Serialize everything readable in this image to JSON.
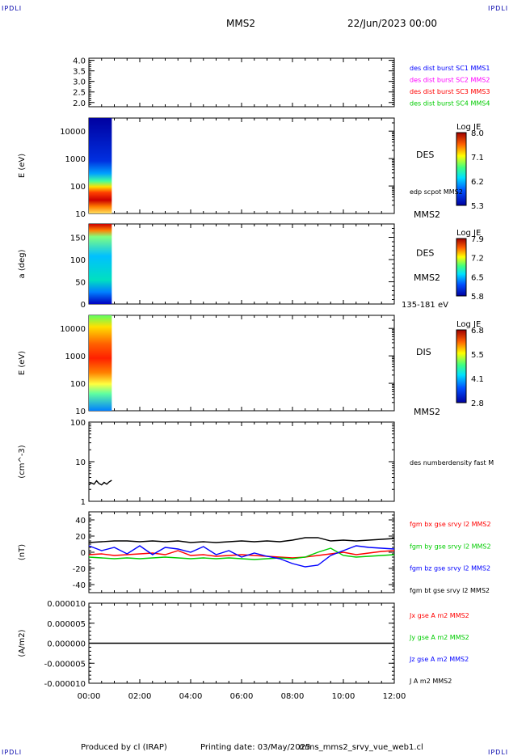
{
  "header": {
    "title": "MMS2",
    "date": "22/Jun/2023 00:00",
    "corner_mark": "IPDLI"
  },
  "footer": {
    "produced": "Produced by cl (IRAP)",
    "printing": "Printing date: 03/May/2025",
    "file": "mms_mms2_srvy_vue_web1.cl"
  },
  "x_axis": {
    "ticks": [
      "00:00",
      "02:00",
      "04:00",
      "06:00",
      "08:00",
      "10:00",
      "12:00"
    ],
    "range_hours": [
      0,
      12
    ]
  },
  "colors": {
    "blue": "#0000ff",
    "magenta": "#ff00ff",
    "red": "#ff0000",
    "green": "#00cc00",
    "black": "#000000"
  },
  "chart_data": [
    {
      "type": "line",
      "title": "",
      "ylabel": "",
      "ylim": [
        1.8,
        4.1
      ],
      "yticks": [
        "4.0",
        "3.5",
        "3.0",
        "2.5",
        "2.0"
      ],
      "series": [],
      "legend": [
        {
          "label": "des dist burst SC1 MMS1",
          "color": "#0000ff"
        },
        {
          "label": "des dist burst SC2 MMS2",
          "color": "#ff00ff"
        },
        {
          "label": "des dist burst SC3 MMS3",
          "color": "#ff0000"
        },
        {
          "label": "des dist burst SC4 MMS4",
          "color": "#00cc00"
        }
      ]
    },
    {
      "type": "heatmap",
      "ylabel": "E (eV)",
      "yscale": "log",
      "ylim": [
        10,
        30000
      ],
      "yticks": [
        "10000",
        "1000",
        "100",
        "10"
      ],
      "x_range_hours": [
        0,
        0.9
      ],
      "side_labels": [
        "DES",
        "edp scpot MMS2",
        "MMS2"
      ],
      "colorbar": {
        "title": "Log JE",
        "ticks": [
          "8.0",
          "7.1",
          "6.2",
          "5.3"
        ]
      }
    },
    {
      "type": "heatmap",
      "ylabel": "a (deg)",
      "ylim": [
        0,
        180
      ],
      "yticks": [
        "150",
        "100",
        "50",
        "0"
      ],
      "x_range_hours": [
        0,
        0.9
      ],
      "side_labels": [
        "DES",
        "MMS2",
        "135-181 eV"
      ],
      "colorbar": {
        "title": "Log JE",
        "ticks": [
          "7.9",
          "7.2",
          "6.5",
          "5.8"
        ]
      }
    },
    {
      "type": "heatmap",
      "ylabel": "E (eV)",
      "yscale": "log",
      "ylim": [
        10,
        30000
      ],
      "yticks": [
        "10000",
        "1000",
        "100",
        "10"
      ],
      "x_range_hours": [
        0,
        0.9
      ],
      "side_labels": [
        "DIS",
        "MMS2"
      ],
      "colorbar": {
        "title": "Log JE",
        "ticks": [
          "6.8",
          "5.5",
          "4.1",
          "2.8"
        ]
      }
    },
    {
      "type": "line",
      "ylabel": "(cm^-3)",
      "yscale": "log",
      "ylim": [
        1,
        100
      ],
      "yticks": [
        "100",
        "10",
        "1"
      ],
      "legend": [
        {
          "label": "des numberdensity fast M",
          "color": "#000000"
        }
      ],
      "series": [
        {
          "name": "des numberdensity fast M",
          "x_hours": [
            0.0,
            0.1,
            0.2,
            0.3,
            0.4,
            0.5,
            0.6,
            0.7,
            0.8,
            0.9
          ],
          "values": [
            2.6,
            2.9,
            2.7,
            3.3,
            2.8,
            2.6,
            3.0,
            2.7,
            3.1,
            3.4
          ]
        }
      ]
    },
    {
      "type": "line",
      "ylabel": "(nT)",
      "ylim": [
        -50,
        50
      ],
      "yticks": [
        "40",
        "20",
        "0",
        "-20",
        "-40"
      ],
      "legend": [
        {
          "label": "fgm bx gse srvy l2 MMS2",
          "color": "#ff0000"
        },
        {
          "label": "fgm by gse srvy l2 MMS2",
          "color": "#00cc00"
        },
        {
          "label": "fgm bz gse srvy l2 MMS2",
          "color": "#0000ff"
        },
        {
          "label": "fgm bt gse srvy l2 MMS2",
          "color": "#000000"
        }
      ],
      "series": [
        {
          "name": "fgm bt gse srvy l2 MMS2",
          "color": "#000000",
          "x_hours": [
            0,
            0.5,
            1,
            1.5,
            2,
            2.5,
            3,
            3.5,
            4,
            4.5,
            5,
            5.5,
            6,
            6.5,
            7,
            7.5,
            8,
            8.5,
            9,
            9.5,
            10,
            10.5,
            11,
            11.5,
            12
          ],
          "values": [
            12,
            13,
            14,
            14,
            13,
            14,
            13,
            14,
            12,
            13,
            12,
            13,
            14,
            13,
            14,
            13,
            15,
            18,
            18,
            14,
            15,
            14,
            15,
            16,
            17
          ]
        },
        {
          "name": "fgm bx gse srvy l2 MMS2",
          "color": "#ff0000",
          "x_hours": [
            0,
            0.5,
            1,
            1.5,
            2,
            2.5,
            3,
            3.5,
            4,
            4.5,
            5,
            5.5,
            6,
            6.5,
            7,
            7.5,
            8,
            8.5,
            9,
            9.5,
            10,
            10.5,
            11,
            11.5,
            12
          ],
          "values": [
            -3,
            -2,
            -4,
            -3,
            -2,
            -1,
            -3,
            2,
            -4,
            -3,
            -5,
            -4,
            -3,
            -4,
            -5,
            -6,
            -7,
            -6,
            -4,
            -2,
            0,
            -3,
            -1,
            1,
            2
          ]
        },
        {
          "name": "fgm by gse srvy l2 MMS2",
          "color": "#00cc00",
          "x_hours": [
            0,
            0.5,
            1,
            1.5,
            2,
            2.5,
            3,
            3.5,
            4,
            4.5,
            5,
            5.5,
            6,
            6.5,
            7,
            7.5,
            8,
            8.5,
            9,
            9.5,
            10,
            10.5,
            11,
            11.5,
            12
          ],
          "values": [
            -6,
            -7,
            -8,
            -7,
            -8,
            -7,
            -6,
            -7,
            -8,
            -7,
            -8,
            -7,
            -8,
            -9,
            -8,
            -7,
            -8,
            -6,
            0,
            5,
            -4,
            -6,
            -5,
            -4,
            -3
          ]
        },
        {
          "name": "fgm bz gse srvy l2 MMS2",
          "color": "#0000ff",
          "x_hours": [
            0,
            0.5,
            1,
            1.5,
            2,
            2.5,
            3,
            3.5,
            4,
            4.5,
            5,
            5.5,
            6,
            6.5,
            7,
            7.5,
            8,
            8.5,
            9,
            9.5,
            10,
            10.5,
            11,
            11.5,
            12
          ],
          "values": [
            8,
            2,
            6,
            -2,
            8,
            -3,
            6,
            4,
            0,
            7,
            -3,
            2,
            -6,
            -1,
            -5,
            -8,
            -14,
            -18,
            -16,
            -4,
            2,
            8,
            6,
            5,
            4
          ]
        }
      ]
    },
    {
      "type": "line",
      "ylabel": "(A/m2)",
      "ylim": [
        -1e-05,
        1e-05
      ],
      "yticks": [
        "0.000010",
        "0.000005",
        "0.000000",
        "-0.000005",
        "-0.000010"
      ],
      "legend": [
        {
          "label": "Jx gse A m2 MMS2",
          "color": "#ff0000"
        },
        {
          "label": "Jy gse A m2 MMS2",
          "color": "#00cc00"
        },
        {
          "label": "Jz gse A m2 MMS2",
          "color": "#0000ff"
        },
        {
          "label": "J A m2 MMS2",
          "color": "#000000"
        }
      ],
      "series": [
        {
          "name": "J A m2 MMS2",
          "color": "#000000",
          "x_hours": [
            0,
            12
          ],
          "values": [
            0,
            0
          ]
        }
      ]
    }
  ]
}
